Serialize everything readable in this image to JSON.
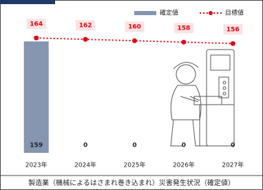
{
  "chart_data": {
    "type": "bar",
    "categories": [
      "2023年",
      "2024年",
      "2025年",
      "2026年",
      "2027年"
    ],
    "series": [
      {
        "name": "確定値",
        "type": "bar",
        "color": "#8496b0",
        "values": [
          159,
          0,
          0,
          0,
          0
        ]
      },
      {
        "name": "目標値",
        "type": "line",
        "color": "#e60012",
        "values": [
          164,
          162,
          160,
          158,
          156
        ]
      }
    ],
    "ylim": [
      0,
      170
    ],
    "caption": "製造業（機械によるはさまれ巻き込まれ）災害発生状況（確定値）"
  }
}
